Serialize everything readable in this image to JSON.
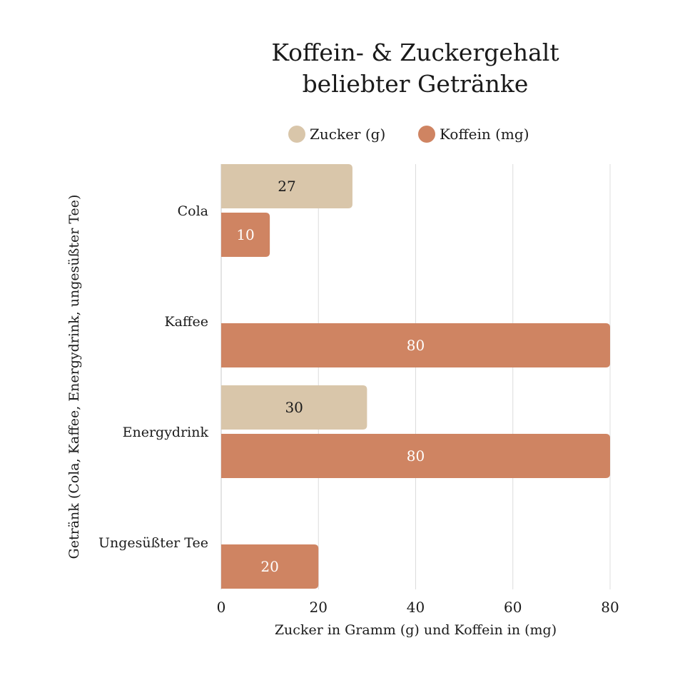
{
  "chart_data": {
    "type": "bar",
    "orientation": "horizontal",
    "title": "Koffein- & Zuckergehalt beliebter Getränke",
    "xlabel": "Zucker in Gramm (g) und Koffein in (mg)",
    "ylabel": "Getränk (Cola, Kaffee, Energydrink, ungesüßter Tee)",
    "categories": [
      "Cola",
      "Kaffee",
      "Energydrink",
      "Ungesüßter Tee"
    ],
    "series": [
      {
        "name": "Zucker (g)",
        "values": [
          27,
          0,
          30,
          0
        ],
        "color": "#d9c6aa",
        "label_color": "#1a1a1a"
      },
      {
        "name": "Koffein (mg)",
        "values": [
          10,
          80,
          80,
          20
        ],
        "color": "#cf8462",
        "label_color": "#ffffff"
      }
    ],
    "xlim": [
      0,
      80
    ],
    "xticks": [
      0,
      20,
      40,
      60,
      80
    ],
    "grid": true,
    "legend": "top",
    "data_labels": true
  }
}
